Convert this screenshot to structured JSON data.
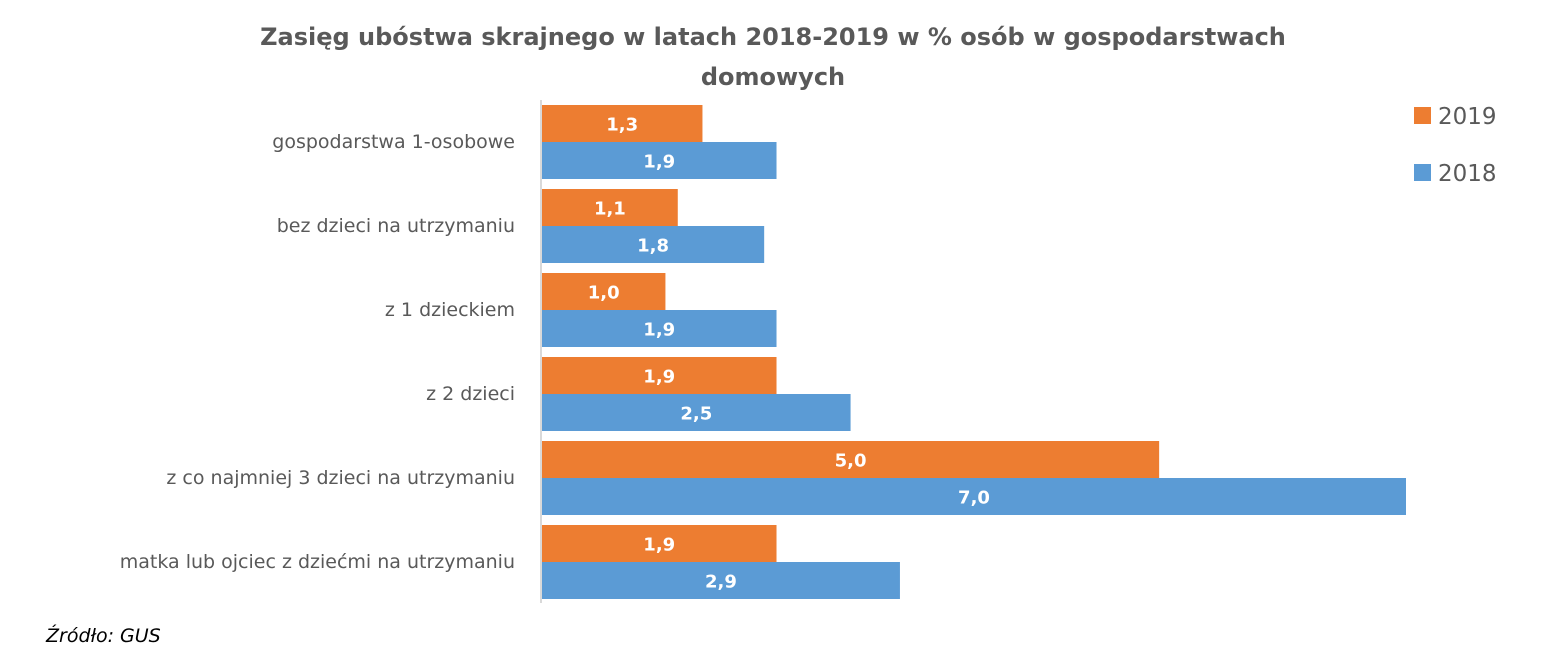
{
  "chart_data": {
    "type": "bar",
    "orientation": "horizontal",
    "title": "Zasięg ubóstwa skrajnego w latach 2018-2019 w % osób w gospodarstwach domowych",
    "title_lines": [
      "Zasięg ubóstwa skrajnego w latach 2018-2019 w % osób w gospodarstwach",
      "domowych"
    ],
    "categories": [
      "gospodarstwa 1-osobowe",
      "bez dzieci na utrzymaniu",
      "z 1 dzieckiem",
      "z 2 dzieci",
      "z co najmniej 3 dzieci na utrzymaniu",
      "matka lub ojciec z dziećmi na utrzymaniu"
    ],
    "series": [
      {
        "name": "2019",
        "color": "#ED7D31",
        "values": [
          1.3,
          1.1,
          1.0,
          1.9,
          5.0,
          1.9
        ],
        "labels": [
          "1,3",
          "1,1",
          "1,0",
          "1,9",
          "5,0",
          "1,9"
        ]
      },
      {
        "name": "2018",
        "color": "#5B9BD5",
        "values": [
          1.9,
          1.8,
          1.9,
          2.5,
          7.0,
          2.9
        ],
        "labels": [
          "1,9",
          "1,8",
          "1,9",
          "2,5",
          "7,0",
          "2,9"
        ]
      }
    ],
    "xlim": [
      0,
      7
    ],
    "grid": false,
    "legend": "right",
    "source": "Źródło: GUS"
  }
}
